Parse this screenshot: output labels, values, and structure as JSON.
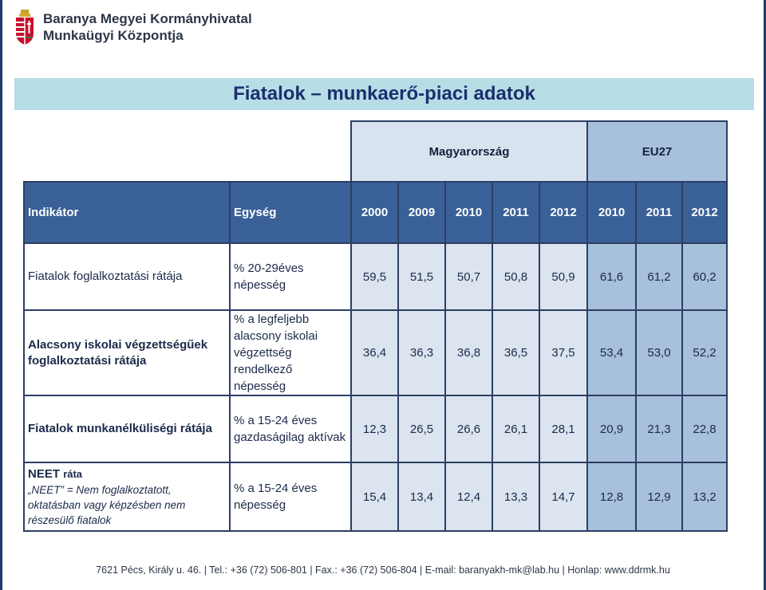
{
  "header": {
    "org_line1": "Baranya Megyei Kormányhivatal",
    "org_line2": "Munkaügyi Központja"
  },
  "title": "Fiatalok – munkaerő-piaci adatok",
  "table": {
    "group_hu": "Magyarország",
    "group_eu": "EU27",
    "col_indicator": "Indikátor",
    "col_unit": "Egység",
    "years_hu": [
      "2000",
      "2009",
      "2010",
      "2011",
      "2012"
    ],
    "years_eu": [
      "2010",
      "2011",
      "2012"
    ],
    "rows": [
      {
        "indicator": "Fiatalok foglalkoztatási rátája",
        "unit": "% 20-29éves népesség",
        "hu": [
          "59,5",
          "51,5",
          "50,7",
          "50,8",
          "50,9"
        ],
        "eu": [
          "61,6",
          "61,2",
          "60,2"
        ]
      },
      {
        "indicator": "Alacsony iskolai végzettségűek foglalkoztatási rátája",
        "unit": "% a legfeljebb alacsony iskolai végzettség rendelkező népesség",
        "hu": [
          "36,4",
          "36,3",
          "36,8",
          "36,5",
          "37,5"
        ],
        "eu": [
          "53,4",
          "53,0",
          "52,2"
        ]
      },
      {
        "indicator": "Fiatalok munkanélküliségi rátája",
        "unit": "% a 15-24 éves gazdaságilag aktívak",
        "hu": [
          "12,3",
          "26,5",
          "26,6",
          "26,1",
          "28,1"
        ],
        "eu": [
          "20,9",
          "21,3",
          "22,8"
        ]
      },
      {
        "indicator_bold": "NEET",
        "indicator_small": "ráta",
        "indicator_note": "„NEET” = Nem foglalkoztatott, oktatásban vagy képzésben nem részesülő fiatalok",
        "unit": "% a 15-24 éves népesség",
        "hu": [
          "15,4",
          "13,4",
          "12,4",
          "13,3",
          "14,7"
        ],
        "eu": [
          "12,8",
          "12,9",
          "13,2"
        ]
      }
    ]
  },
  "footer": "7621 Pécs, Király u. 46. | Tel.: +36 (72) 506-801 | Fax.: +36 (72) 506-804 | E-mail: baranyakh-mk@lab.hu | Honlap: www.ddrmk.hu"
}
